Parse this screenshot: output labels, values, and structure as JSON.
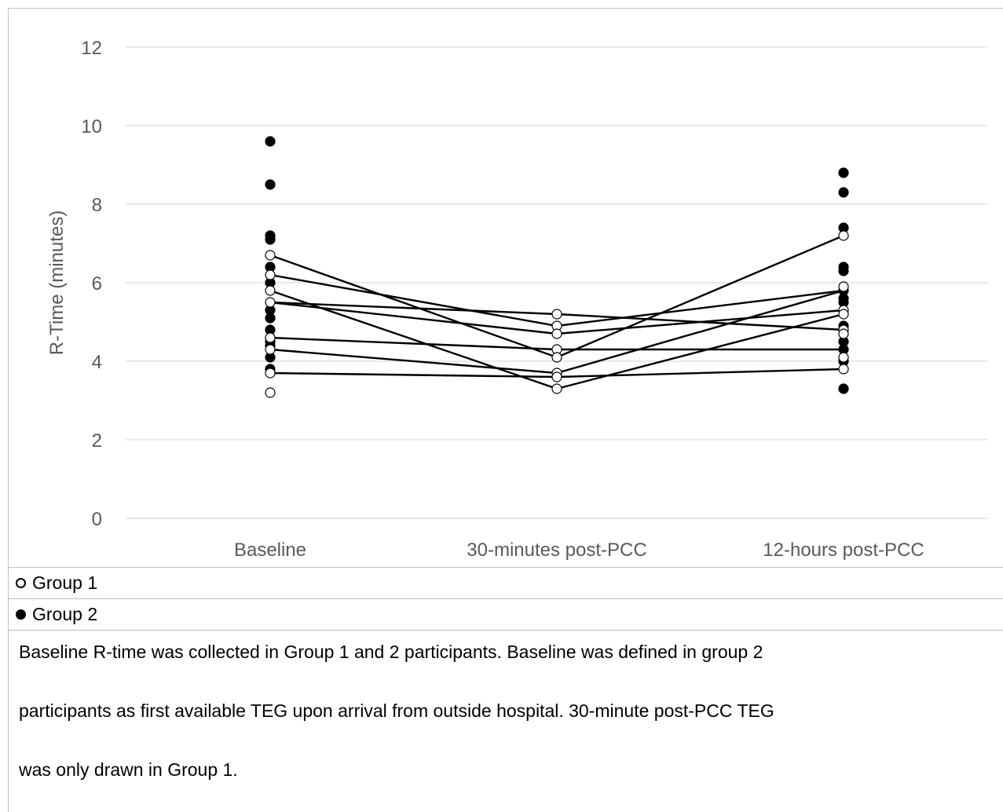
{
  "chart_data": {
    "type": "scatter",
    "ylabel": "R-Time (minutes)",
    "xlabel": "",
    "ylim": [
      0,
      12
    ],
    "yticks": [
      0,
      2,
      4,
      6,
      8,
      10,
      12
    ],
    "categories": [
      "Baseline",
      "30-minutes post-PCC",
      "12-hours post-PCC"
    ],
    "grid": true,
    "series": [
      {
        "name": "Group 1",
        "marker": "open-circle",
        "points": [
          {
            "x": "Baseline",
            "y": 6.7
          },
          {
            "x": "Baseline",
            "y": 6.2
          },
          {
            "x": "Baseline",
            "y": 5.8
          },
          {
            "x": "Baseline",
            "y": 5.5
          },
          {
            "x": "Baseline",
            "y": 4.6
          },
          {
            "x": "Baseline",
            "y": 4.3
          },
          {
            "x": "Baseline",
            "y": 3.7
          },
          {
            "x": "Baseline",
            "y": 3.2
          },
          {
            "x": "30-minutes post-PCC",
            "y": 5.2
          },
          {
            "x": "30-minutes post-PCC",
            "y": 4.9
          },
          {
            "x": "30-minutes post-PCC",
            "y": 4.7
          },
          {
            "x": "30-minutes post-PCC",
            "y": 4.3
          },
          {
            "x": "30-minutes post-PCC",
            "y": 4.1
          },
          {
            "x": "30-minutes post-PCC",
            "y": 3.7
          },
          {
            "x": "30-minutes post-PCC",
            "y": 3.6
          },
          {
            "x": "30-minutes post-PCC",
            "y": 3.3
          },
          {
            "x": "12-hours post-PCC",
            "y": 7.2
          },
          {
            "x": "12-hours post-PCC",
            "y": 5.9
          },
          {
            "x": "12-hours post-PCC",
            "y": 5.3
          },
          {
            "x": "12-hours post-PCC",
            "y": 5.2
          },
          {
            "x": "12-hours post-PCC",
            "y": 4.8
          },
          {
            "x": "12-hours post-PCC",
            "y": 4.7
          },
          {
            "x": "12-hours post-PCC",
            "y": 4.1
          },
          {
            "x": "12-hours post-PCC",
            "y": 3.8
          }
        ]
      },
      {
        "name": "Group 2",
        "marker": "filled-circle",
        "points": [
          {
            "x": "Baseline",
            "y": 9.6
          },
          {
            "x": "Baseline",
            "y": 8.5
          },
          {
            "x": "Baseline",
            "y": 7.2
          },
          {
            "x": "Baseline",
            "y": 7.1
          },
          {
            "x": "Baseline",
            "y": 6.4
          },
          {
            "x": "Baseline",
            "y": 6.0
          },
          {
            "x": "Baseline",
            "y": 5.3
          },
          {
            "x": "Baseline",
            "y": 5.1
          },
          {
            "x": "Baseline",
            "y": 4.8
          },
          {
            "x": "Baseline",
            "y": 4.6
          },
          {
            "x": "Baseline",
            "y": 4.5
          },
          {
            "x": "Baseline",
            "y": 4.4
          },
          {
            "x": "Baseline",
            "y": 4.1
          },
          {
            "x": "Baseline",
            "y": 3.8
          },
          {
            "x": "12-hours post-PCC",
            "y": 8.8
          },
          {
            "x": "12-hours post-PCC",
            "y": 8.3
          },
          {
            "x": "12-hours post-PCC",
            "y": 7.4
          },
          {
            "x": "12-hours post-PCC",
            "y": 6.4
          },
          {
            "x": "12-hours post-PCC",
            "y": 6.3
          },
          {
            "x": "12-hours post-PCC",
            "y": 5.8
          },
          {
            "x": "12-hours post-PCC",
            "y": 5.6
          },
          {
            "x": "12-hours post-PCC",
            "y": 5.5
          },
          {
            "x": "12-hours post-PCC",
            "y": 4.9
          },
          {
            "x": "12-hours post-PCC",
            "y": 4.5
          },
          {
            "x": "12-hours post-PCC",
            "y": 4.3
          },
          {
            "x": "12-hours post-PCC",
            "y": 4.0
          },
          {
            "x": "12-hours post-PCC",
            "y": 3.3
          }
        ]
      }
    ],
    "paired_lines": [
      [
        6.7,
        4.1,
        7.2
      ],
      [
        6.2,
        4.9,
        5.8
      ],
      [
        5.8,
        3.3,
        5.2
      ],
      [
        5.5,
        5.2,
        4.8
      ],
      [
        5.5,
        4.7,
        5.3
      ],
      [
        4.6,
        4.3,
        4.3
      ],
      [
        4.3,
        3.7,
        5.8
      ],
      [
        3.7,
        3.6,
        3.8
      ]
    ]
  },
  "legend": {
    "group1_label": "Group 1",
    "group2_label": "Group 2"
  },
  "note": {
    "line1": "Baseline R-time was collected in Group 1 and 2 participants. Baseline was defined in group 2",
    "line2": "participants as first available TEG upon arrival from outside hospital. 30-minute post-PCC TEG",
    "line3": "was only drawn in Group 1."
  }
}
